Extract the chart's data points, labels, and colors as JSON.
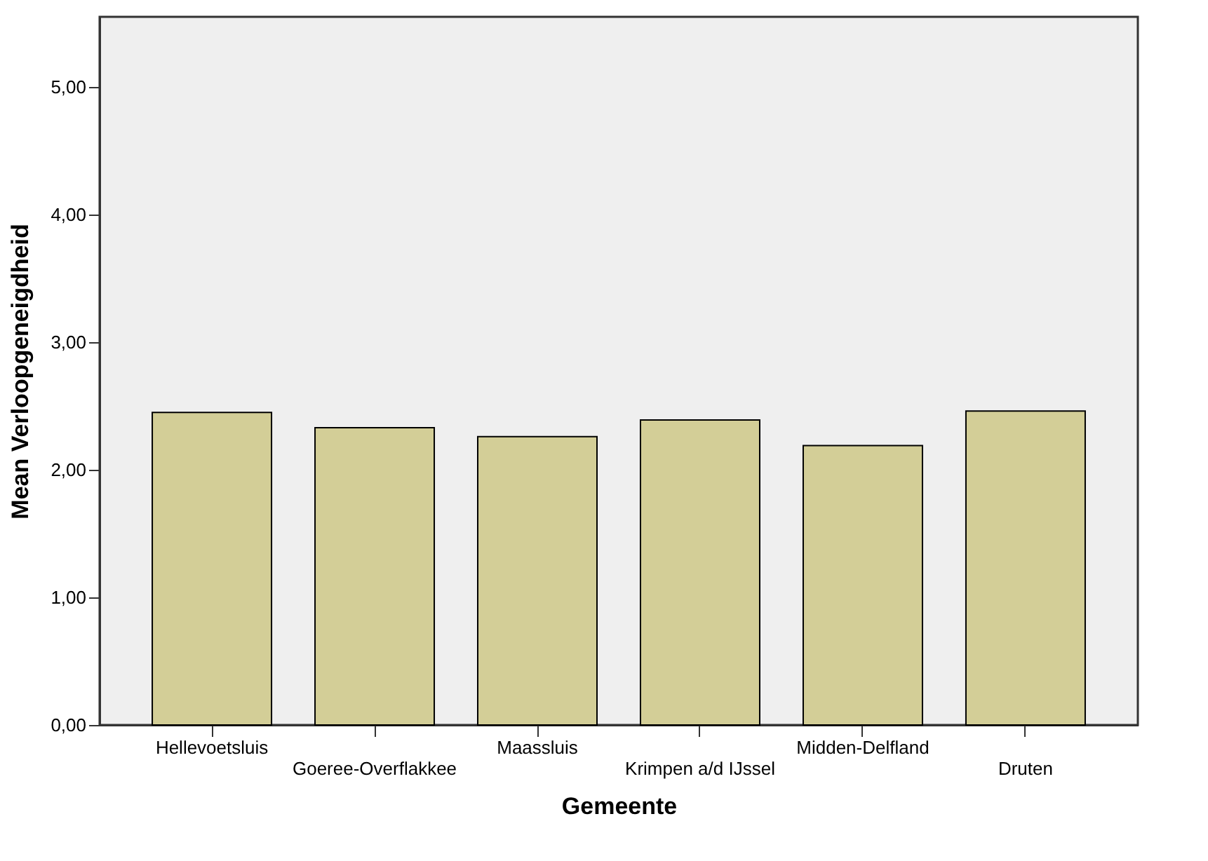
{
  "chart_data": {
    "type": "bar",
    "xlabel": "Gemeente",
    "ylabel": "Mean Verloopgeneigdheid",
    "categories": [
      "Hellevoetsluis",
      "Goeree-Overflakkee",
      "Maassluis",
      "Krimpen a/d IJssel",
      "Midden-Delfland",
      "Druten"
    ],
    "values": [
      2.45,
      2.33,
      2.26,
      2.39,
      2.19,
      2.46
    ],
    "color": "#d3ce97",
    "ylim": [
      0,
      5.55
    ],
    "yticks": [
      {
        "value": 0,
        "label": "0,00"
      },
      {
        "value": 1,
        "label": "1,00"
      },
      {
        "value": 2,
        "label": "2,00"
      },
      {
        "value": 3,
        "label": "3,00"
      },
      {
        "value": 4,
        "label": "4,00"
      },
      {
        "value": 5,
        "label": "5,00"
      }
    ],
    "grid": false
  }
}
